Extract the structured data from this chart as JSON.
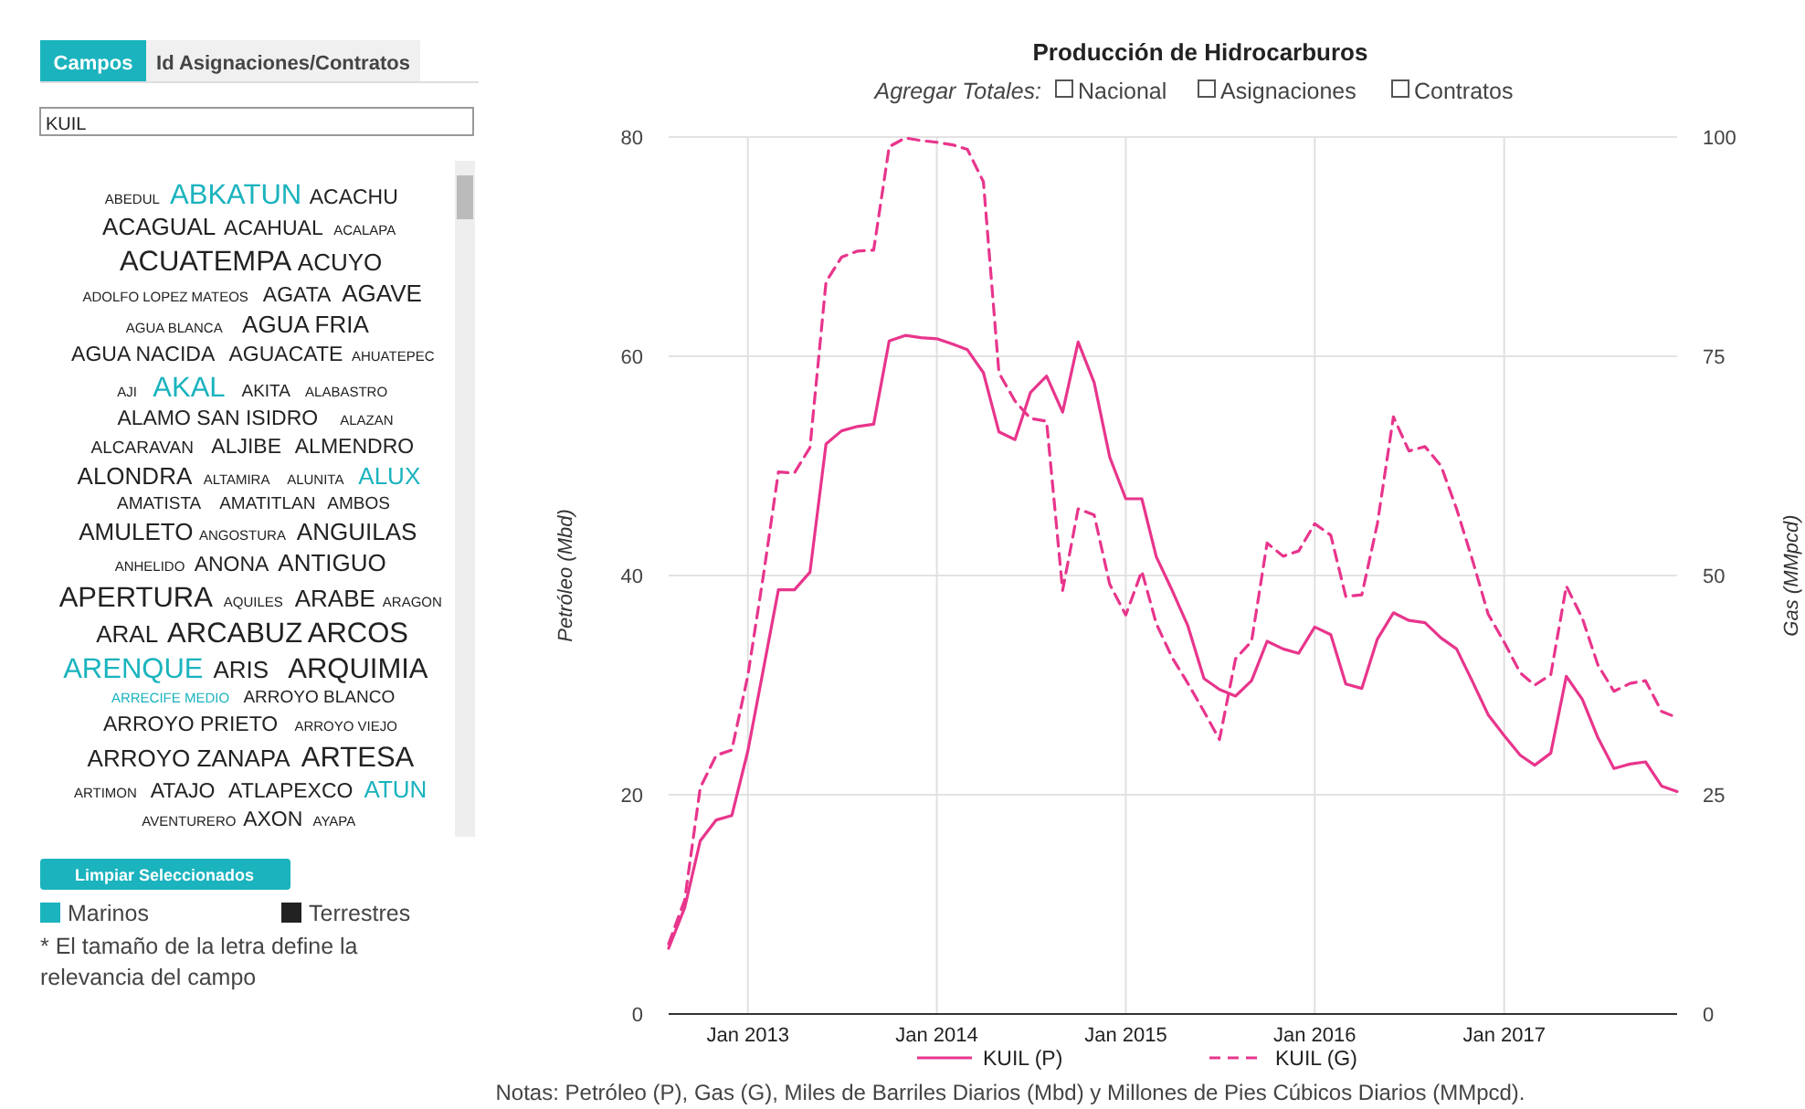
{
  "chart_data": [
    {
      "type": "other",
      "annotations": [
        "Campos",
        "Id Asignaciones/Contratos",
        "KUIL",
        "Limpiar Seleccionados",
        "* El tamaño de la letra define la relevancia del campo"
      ],
      "categories": [
        "ABEDUL",
        "ABKATUN",
        "ACACHU",
        "ACAGUAL",
        "ACAHUAL",
        "ACALAPA",
        "ACUATEMPA",
        "ACUYO",
        "ADOLFO LOPEZ MATEOS",
        "AGATA",
        "AGAVE",
        "AGUA BLANCA",
        "AGUA FRIA",
        "AGUA NACIDA",
        "AGUACATE",
        "AHUATEPEC",
        "AJI",
        "AKAL",
        "AKITA",
        "ALABASTRO",
        "ALAMO SAN ISIDRO",
        "ALAZAN",
        "ALCARAVAN",
        "ALJIBE",
        "ALMENDRO",
        "ALONDRA",
        "ALTAMIRA",
        "ALUNITA",
        "ALUX",
        "AMATISTA",
        "AMATITLAN",
        "AMBOS",
        "AMULETO",
        "ANGOSTURA",
        "ANGUILAS",
        "ANHELIDO",
        "ANONA",
        "ANTIGUO",
        "APERTURA",
        "AQUILES",
        "ARABE",
        "ARAGON",
        "ARAL",
        "ARCABUZ",
        "ARCOS",
        "ARENQUE",
        "ARIS",
        "ARQUIMIA",
        "ARRECIFE MEDIO",
        "ARROYO BLANCO",
        "ARROYO PRIETO",
        "ARROYO VIEJO",
        "ARROYO ZANAPA",
        "ARTESA",
        "ARTIMON",
        "ATAJO",
        "ATLAPEXCO",
        "ATUN",
        "AVENTURERO",
        "AXON",
        "AYAPA"
      ],
      "colors": [
        "#222222",
        "#1ab3be",
        "#222222",
        "#222222",
        "#222222",
        "#222222",
        "#222222",
        "#222222",
        "#222222",
        "#222222",
        "#222222",
        "#222222",
        "#222222",
        "#222222",
        "#222222",
        "#222222",
        "#222222",
        "#1ab3be",
        "#222222",
        "#222222",
        "#222222",
        "#222222",
        "#222222",
        "#222222",
        "#222222",
        "#222222",
        "#222222",
        "#222222",
        "#1ab3be",
        "#222222",
        "#222222",
        "#222222",
        "#222222",
        "#222222",
        "#222222",
        "#222222",
        "#222222",
        "#222222",
        "#222222",
        "#222222",
        "#222222",
        "#222222",
        "#222222",
        "#222222",
        "#222222",
        "#1ab3be",
        "#222222",
        "#222222",
        "#1ab3be",
        "#222222",
        "#222222",
        "#222222",
        "#222222",
        "#222222",
        "#222222",
        "#222222",
        "#222222",
        "#1ab3be",
        "#222222",
        "#222222",
        "#222222"
      ],
      "legend_title": "Marinos",
      "subtitle": "Terrestres"
    },
    {
      "type": "line",
      "title": "Producción de Hidrocarburos",
      "annotations": [
        "Agregar Totales:",
        "Nacional",
        "Asignaciones",
        "Contratos",
        "Notas: Petróleo (P), Gas (G), Miles de Barriles Diarios (Mbd) y Millones de Pies Cúbicos Diarios (MMpcd)."
      ],
      "ylabel": "Petróleo (Mbd)",
      "y2label": "Gas (MMpcd)",
      "x": [
        "2012-08",
        "2012-09",
        "2012-10",
        "2012-11",
        "2012-12",
        "2013-01",
        "2013-02",
        "2013-03",
        "2013-04",
        "2013-05",
        "2013-06",
        "2013-07",
        "2013-08",
        "2013-09",
        "2013-10",
        "2013-11",
        "2013-12",
        "2014-01",
        "2014-02",
        "2014-03",
        "2014-04",
        "2014-05",
        "2014-06",
        "2014-07",
        "2014-08",
        "2014-09",
        "2014-10",
        "2014-11",
        "2014-12",
        "2015-01",
        "2015-02",
        "2015-03",
        "2015-04",
        "2015-05",
        "2015-06",
        "2015-07",
        "2015-08",
        "2015-09",
        "2015-10",
        "2015-11",
        "2015-12",
        "2016-01",
        "2016-02",
        "2016-03",
        "2016-04",
        "2016-05",
        "2016-06",
        "2016-07",
        "2016-08",
        "2016-09",
        "2016-10",
        "2016-11",
        "2016-12",
        "2017-01",
        "2017-02",
        "2017-03",
        "2017-04",
        "2017-05",
        "2017-06",
        "2017-07",
        "2017-08",
        "2017-09",
        "2017-10",
        "2017-11",
        "2017-12"
      ],
      "series": [
        {
          "name": "KUIL (P)",
          "color": "#e8358c",
          "line_style": "solid",
          "values": [
            6,
            9.7,
            15.8,
            17.7,
            18.1,
            24,
            31.7,
            38.7,
            38.7,
            40.3,
            52,
            53.2,
            53.6,
            53.8,
            61.4,
            61.9,
            61.7,
            61.6,
            61.1,
            60.6,
            58.5,
            53.1,
            52.4,
            56.7,
            58.2,
            54.9,
            61.3,
            57.6,
            50.8,
            47,
            47,
            41.7,
            38.6,
            35.4,
            30.6,
            29.6,
            29,
            30.4,
            34,
            33.3,
            32.9,
            35.3,
            34.6,
            30.1,
            29.7,
            34.2,
            36.6,
            35.9,
            35.7,
            34.3,
            33.3,
            30.3,
            27.3,
            25.4,
            23.6,
            22.7,
            23.8,
            30.8,
            28.7,
            25.2,
            22.4,
            22.8,
            23,
            20.8,
            20.3
          ]
        },
        {
          "name": "KUIL (G)",
          "color": "#e8358c",
          "line_style": "dashed",
          "axis": "y2",
          "values": [
            8,
            13,
            25.8,
            29.5,
            30.1,
            38.6,
            50.4,
            61.8,
            61.7,
            64.6,
            83.5,
            86.3,
            87,
            87.1,
            98.9,
            99.9,
            99.6,
            99.4,
            99.1,
            98.6,
            94.9,
            73.1,
            69.9,
            67.9,
            67.6,
            48.3,
            57.6,
            56.9,
            49,
            45.5,
            50.5,
            44.5,
            40.6,
            37.7,
            34.5,
            31.3,
            40.5,
            42.5,
            53.7,
            52.2,
            52.8,
            55.9,
            54.6,
            47.6,
            47.8,
            55.9,
            68.1,
            64.2,
            64.7,
            62.5,
            57.6,
            51.7,
            45.6,
            42.4,
            38.9,
            37.5,
            38.7,
            48.8,
            45.1,
            39.8,
            36.8,
            37.7,
            38,
            34.5,
            33.8
          ]
        }
      ],
      "xlim": [
        "2012-08",
        "2017-12"
      ],
      "xticks": [
        {
          "value": "2013-01",
          "label": "Jan 2013"
        },
        {
          "value": "2014-01",
          "label": "Jan 2014"
        },
        {
          "value": "2015-01",
          "label": "Jan 2015"
        },
        {
          "value": "2016-01",
          "label": "Jan 2016"
        },
        {
          "value": "2017-01",
          "label": "Jan 2017"
        }
      ],
      "ylim": [
        0,
        80
      ],
      "yticks": [
        0,
        20,
        40,
        60,
        80
      ],
      "y2lim": [
        0,
        100
      ],
      "y2ticks": [
        0,
        25,
        50,
        75,
        100
      ],
      "grid": true,
      "legend": "bottom",
      "marker": "none"
    }
  ]
}
